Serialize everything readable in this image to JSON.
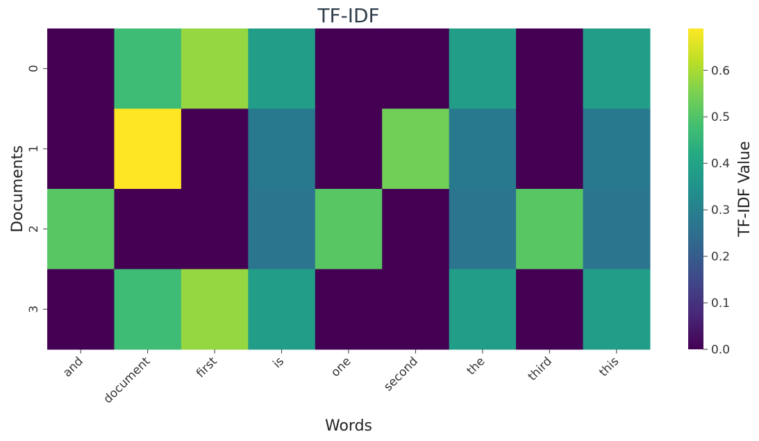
{
  "chart_data": {
    "type": "heatmap",
    "title": "TF-IDF",
    "xlabel": "Words",
    "ylabel": "Documents",
    "colorbar_label": "TF-IDF Value",
    "colormap": "viridis",
    "x_categories": [
      "and",
      "document",
      "first",
      "is",
      "one",
      "second",
      "the",
      "third",
      "this"
    ],
    "y_categories": [
      "0",
      "1",
      "2",
      "3"
    ],
    "values": [
      [
        0.0,
        0.47,
        0.58,
        0.38,
        0.0,
        0.0,
        0.38,
        0.0,
        0.38
      ],
      [
        0.0,
        0.69,
        0.0,
        0.28,
        0.0,
        0.54,
        0.28,
        0.0,
        0.28
      ],
      [
        0.51,
        0.0,
        0.0,
        0.27,
        0.51,
        0.0,
        0.27,
        0.51,
        0.27
      ],
      [
        0.0,
        0.47,
        0.58,
        0.38,
        0.0,
        0.0,
        0.38,
        0.0,
        0.38
      ]
    ],
    "colorbar_range": [
      0.0,
      0.69
    ],
    "colorbar_ticks": [
      "0.0",
      "0.1",
      "0.2",
      "0.3",
      "0.4",
      "0.5",
      "0.6"
    ]
  }
}
